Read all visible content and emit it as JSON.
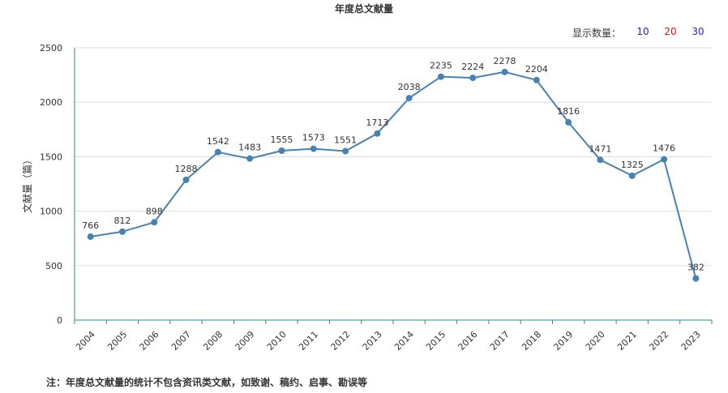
{
  "title": "年度总文献量",
  "count_selector": {
    "label": "显示数量：",
    "options": [
      {
        "label": "10",
        "color": "#1f1fcc"
      },
      {
        "label": "20",
        "color": "#dd1111"
      },
      {
        "label": "30",
        "color": "#1f1fcc"
      }
    ]
  },
  "note": "注：年度总文献量的统计不包含资讯类文献，如致谢、稿约、启事、勘误等",
  "chart_data": {
    "type": "line",
    "title": "年度总文献量",
    "ylabel": "文献量（篇）",
    "xlabel": "",
    "ylim": [
      0,
      2500
    ],
    "yticks": [
      0,
      500,
      1000,
      1500,
      2000,
      2500
    ],
    "grid": true,
    "line_color": "#4682b4",
    "categories": [
      "2004",
      "2005",
      "2006",
      "2007",
      "2008",
      "2009",
      "2010",
      "2011",
      "2012",
      "2013",
      "2014",
      "2015",
      "2016",
      "2017",
      "2018",
      "2019",
      "2020",
      "2021",
      "2022",
      "2023"
    ],
    "series": [
      {
        "values": [
          766,
          812,
          898,
          1288,
          1542,
          1483,
          1555,
          1573,
          1551,
          1713,
          2038,
          2235,
          2224,
          2278,
          2204,
          1816,
          1471,
          1325,
          1476,
          382
        ]
      }
    ]
  }
}
